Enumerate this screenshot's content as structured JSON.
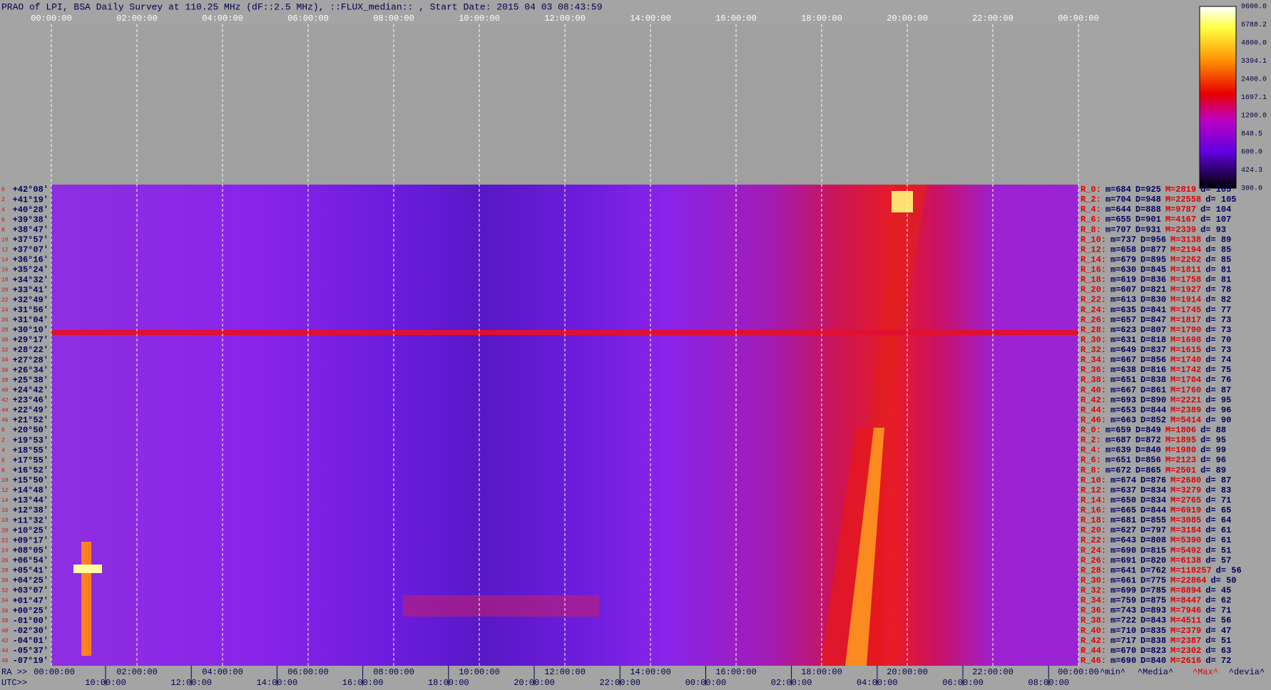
{
  "header": {
    "title": "PRAO of LPI, BSA Daily Survey at 110.25 MHz (dF::2.5 MHz), ::FLUX_median:: , Start Date: 2015 04 03 08:43:59"
  },
  "top_axis": {
    "labels": [
      "00:00:00",
      "02:00:00",
      "04:00:00",
      "06:00:00",
      "08:00:00",
      "10:00:00",
      "12:00:00",
      "14:00:00",
      "16:00:00",
      "18:00:00",
      "20:00:00",
      "22:00:00",
      "00:00:00"
    ]
  },
  "bottom_axis": {
    "ra_prefix": "RA >>",
    "ra_labels": [
      "00:00:00",
      "02:00:00",
      "04:00:00",
      "06:00:00",
      "08:00:00",
      "10:00:00",
      "12:00:00",
      "14:00:00",
      "16:00:00",
      "18:00:00",
      "20:00:00",
      "22:00:00",
      "00:00:00"
    ],
    "utc_prefix": "UTC>>",
    "utc_labels": [
      "10:00:00",
      "12:00:00",
      "14:00:00",
      "16:00:00",
      "18:00:00",
      "20:00:00",
      "22:00:00",
      "00:00:00",
      "02:00:00",
      "04:00:00",
      "06:00:00",
      "08:00:00"
    ]
  },
  "colorbar": {
    "labels": [
      "9600.0",
      "6788.2",
      "4800.0",
      "3394.1",
      "2400.0",
      "1697.1",
      "1200.0",
      "848.5",
      "600.0",
      "424.3",
      "300.0"
    ]
  },
  "rows": [
    {
      "idx": "0",
      "dec": "+42°08'",
      "stats": [
        "R_0:",
        "m=684",
        "D=925",
        "M=2819",
        "d= 105"
      ]
    },
    {
      "idx": "2",
      "dec": "+41°19'",
      "stats": [
        "R_2:",
        "m=704",
        "D=948",
        "M=22558",
        "d= 105"
      ]
    },
    {
      "idx": "4",
      "dec": "+40°28'",
      "stats": [
        "R_4:",
        "m=644",
        "D=888",
        "M=9787",
        "d= 104"
      ]
    },
    {
      "idx": "6",
      "dec": "+39°38'",
      "stats": [
        "R_6:",
        "m=655",
        "D=901",
        "M=4167",
        "d= 107"
      ]
    },
    {
      "idx": "8",
      "dec": "+38°47'",
      "stats": [
        "R_8:",
        "m=707",
        "D=931",
        "M=2339",
        "d= 93"
      ]
    },
    {
      "idx": "10",
      "dec": "+37°57'",
      "stats": [
        "R_10:",
        "m=737",
        "D=956",
        "M=3138",
        "d= 89"
      ]
    },
    {
      "idx": "12",
      "dec": "+37°07'",
      "stats": [
        "R_12:",
        "m=658",
        "D=877",
        "M=2194",
        "d= 85"
      ]
    },
    {
      "idx": "14",
      "dec": "+36°16'",
      "stats": [
        "R_14:",
        "m=679",
        "D=895",
        "M=2262",
        "d= 85"
      ]
    },
    {
      "idx": "16",
      "dec": "+35°24'",
      "stats": [
        "R_16:",
        "m=630",
        "D=845",
        "M=1811",
        "d= 81"
      ]
    },
    {
      "idx": "18",
      "dec": "+34°32'",
      "stats": [
        "R_18:",
        "m=619",
        "D=836",
        "M=1758",
        "d= 81"
      ]
    },
    {
      "idx": "20",
      "dec": "+33°41'",
      "stats": [
        "R_20:",
        "m=607",
        "D=821",
        "M=1927",
        "d= 78"
      ]
    },
    {
      "idx": "22",
      "dec": "+32°49'",
      "stats": [
        "R_22:",
        "m=613",
        "D=830",
        "M=1914",
        "d= 82"
      ]
    },
    {
      "idx": "24",
      "dec": "+31°56'",
      "stats": [
        "R_24:",
        "m=635",
        "D=841",
        "M=1745",
        "d= 77"
      ]
    },
    {
      "idx": "26",
      "dec": "+31°04'",
      "stats": [
        "R_26:",
        "m=657",
        "D=847",
        "M=1817",
        "d= 73"
      ]
    },
    {
      "idx": "28",
      "dec": "+30°10'",
      "stats": [
        "R_28:",
        "m=623",
        "D=807",
        "M=1790",
        "d= 73"
      ]
    },
    {
      "idx": "30",
      "dec": "+29°17'",
      "stats": [
        "R_30:",
        "m=631",
        "D=818",
        "M=1698",
        "d= 70"
      ]
    },
    {
      "idx": "32",
      "dec": "+28°22'",
      "stats": [
        "R_32:",
        "m=649",
        "D=837",
        "M=1615",
        "d= 73"
      ]
    },
    {
      "idx": "34",
      "dec": "+27°28'",
      "stats": [
        "R_34:",
        "m=667",
        "D=856",
        "M=1740",
        "d= 74"
      ]
    },
    {
      "idx": "36",
      "dec": "+26°34'",
      "stats": [
        "R_36:",
        "m=638",
        "D=816",
        "M=1742",
        "d= 75"
      ]
    },
    {
      "idx": "38",
      "dec": "+25°38'",
      "stats": [
        "R_38:",
        "m=651",
        "D=838",
        "M=1704",
        "d= 76"
      ]
    },
    {
      "idx": "40",
      "dec": "+24°42'",
      "stats": [
        "R_40:",
        "m=667",
        "D=861",
        "M=1760",
        "d= 87"
      ]
    },
    {
      "idx": "42",
      "dec": "+23°46'",
      "stats": [
        "R_42:",
        "m=693",
        "D=890",
        "M=2221",
        "d= 95"
      ]
    },
    {
      "idx": "44",
      "dec": "+22°49'",
      "stats": [
        "R_44:",
        "m=653",
        "D=844",
        "M=2389",
        "d= 96"
      ]
    },
    {
      "idx": "46",
      "dec": "+21°52'",
      "stats": [
        "R_46:",
        "m=663",
        "D=852",
        "M=5414",
        "d= 90"
      ]
    },
    {
      "idx": "0",
      "dec": "+20°50'",
      "stats": [
        "R_0:",
        "m=659",
        "D=849",
        "M=1806",
        "d= 88"
      ]
    },
    {
      "idx": "2",
      "dec": "+19°53'",
      "stats": [
        "R_2:",
        "m=687",
        "D=872",
        "M=1895",
        "d= 95"
      ]
    },
    {
      "idx": "4",
      "dec": "+18°55'",
      "stats": [
        "R_4:",
        "m=639",
        "D=840",
        "M=1980",
        "d= 99"
      ]
    },
    {
      "idx": "6",
      "dec": "+17°55'",
      "stats": [
        "R_6:",
        "m=651",
        "D=856",
        "M=2123",
        "d= 96"
      ]
    },
    {
      "idx": "8",
      "dec": "+16°52'",
      "stats": [
        "R_8:",
        "m=672",
        "D=865",
        "M=2501",
        "d= 89"
      ]
    },
    {
      "idx": "10",
      "dec": "+15°50'",
      "stats": [
        "R_10:",
        "m=674",
        "D=876",
        "M=2680",
        "d= 87"
      ]
    },
    {
      "idx": "12",
      "dec": "+14°48'",
      "stats": [
        "R_12:",
        "m=637",
        "D=834",
        "M=3279",
        "d= 83"
      ]
    },
    {
      "idx": "14",
      "dec": "+13°44'",
      "stats": [
        "R_14:",
        "m=650",
        "D=834",
        "M=2765",
        "d= 71"
      ]
    },
    {
      "idx": "16",
      "dec": "+12°38'",
      "stats": [
        "R_16:",
        "m=665",
        "D=844",
        "M=6919",
        "d= 65"
      ]
    },
    {
      "idx": "18",
      "dec": "+11°32'",
      "stats": [
        "R_18:",
        "m=681",
        "D=855",
        "M=3085",
        "d= 64"
      ]
    },
    {
      "idx": "20",
      "dec": "+10°25'",
      "stats": [
        "R_20:",
        "m=627",
        "D=797",
        "M=3184",
        "d= 61"
      ]
    },
    {
      "idx": "22",
      "dec": "+09°17'",
      "stats": [
        "R_22:",
        "m=643",
        "D=808",
        "M=5390",
        "d= 61"
      ]
    },
    {
      "idx": "24",
      "dec": "+08°05'",
      "stats": [
        "R_24:",
        "m=690",
        "D=815",
        "M=5492",
        "d= 51"
      ]
    },
    {
      "idx": "26",
      "dec": "+06°54'",
      "stats": [
        "R_26:",
        "m=691",
        "D=820",
        "M=6138",
        "d= 57"
      ]
    },
    {
      "idx": "28",
      "dec": "+05°41'",
      "stats": [
        "R_28:",
        "m=641",
        "D=762",
        "M=118257",
        "d= 56"
      ]
    },
    {
      "idx": "30",
      "dec": "+04°25'",
      "stats": [
        "R_30:",
        "m=661",
        "D=775",
        "M=22864",
        "d= 50"
      ]
    },
    {
      "idx": "32",
      "dec": "+03°07'",
      "stats": [
        "R_32:",
        "m=699",
        "D=785",
        "M=8894",
        "d= 45"
      ]
    },
    {
      "idx": "34",
      "dec": "+01°47'",
      "stats": [
        "R_34:",
        "m=759",
        "D=875",
        "M=8447",
        "d= 62"
      ]
    },
    {
      "idx": "36",
      "dec": "+00°25'",
      "stats": [
        "R_36:",
        "m=743",
        "D=893",
        "M=7946",
        "d= 71"
      ]
    },
    {
      "idx": "38",
      "dec": "-01°00'",
      "stats": [
        "R_38:",
        "m=722",
        "D=843",
        "M=4511",
        "d= 56"
      ]
    },
    {
      "idx": "40",
      "dec": "-02°30'",
      "stats": [
        "R_40:",
        "m=710",
        "D=835",
        "M=2379",
        "d= 47"
      ]
    },
    {
      "idx": "42",
      "dec": "-04°01'",
      "stats": [
        "R_42:",
        "m=717",
        "D=838",
        "M=2387",
        "d= 51"
      ]
    },
    {
      "idx": "44",
      "dec": "-05°37'",
      "stats": [
        "R_44:",
        "m=670",
        "D=823",
        "M=2302",
        "d= 63"
      ]
    },
    {
      "idx": "46",
      "dec": "-07°19'",
      "stats": [
        "R_46:",
        "m=690",
        "D=840",
        "M=2616",
        "d= 72"
      ]
    }
  ],
  "footer": {
    "labels": [
      "^min^",
      "^Media^",
      "^Max^",
      "^devia^"
    ]
  }
}
